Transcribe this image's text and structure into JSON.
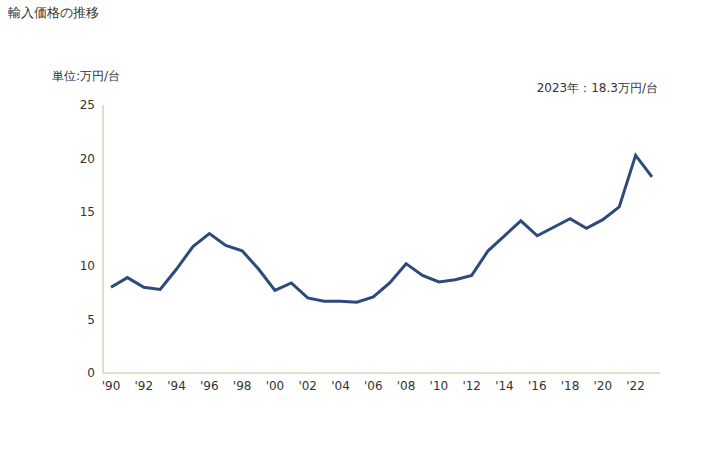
{
  "chart_data": {
    "type": "line",
    "title": "輸入価格の推移",
    "y_label": "単位:万円/台",
    "annotations": [
      "2023年：18.3万円/台"
    ],
    "categories": [
      "'90",
      null,
      "'92",
      null,
      "'94",
      null,
      "'96",
      null,
      "'98",
      null,
      "'00",
      null,
      "'02",
      null,
      "'04",
      null,
      "'06",
      null,
      "'08",
      null,
      "'10",
      null,
      "'12",
      null,
      "'14",
      null,
      "'16",
      null,
      "'18",
      null,
      "'20",
      null,
      "'22",
      null
    ],
    "values": [
      8.0,
      8.9,
      8.0,
      7.8,
      9.7,
      11.8,
      13.0,
      11.9,
      11.4,
      9.7,
      7.7,
      8.4,
      7.0,
      6.7,
      6.7,
      6.6,
      7.1,
      8.4,
      10.2,
      9.1,
      8.5,
      8.7,
      9.1,
      11.4,
      12.8,
      14.2,
      12.8,
      13.6,
      14.4,
      13.5,
      14.3,
      15.5,
      20.3,
      18.3
    ],
    "color": "#2e4a7a",
    "ylim": [
      0,
      25
    ],
    "yticks": [
      0,
      5,
      10,
      15,
      20,
      25
    ],
    "grid": false
  }
}
